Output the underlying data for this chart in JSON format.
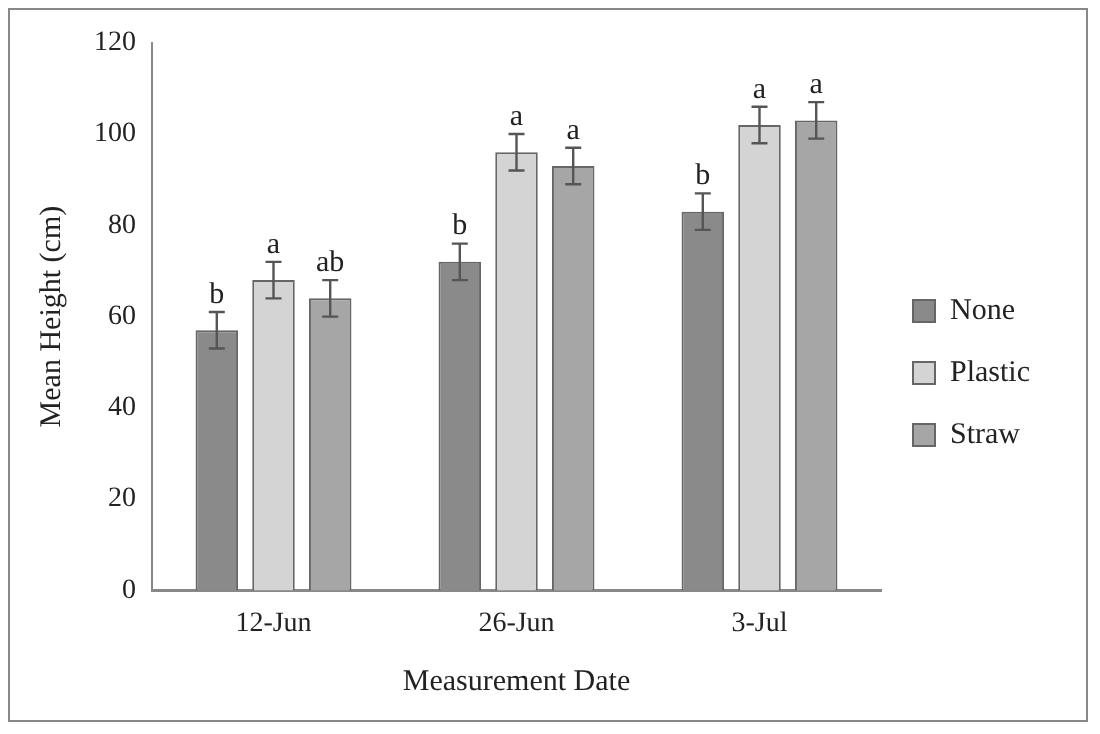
{
  "chart_data": {
    "type": "bar",
    "xlabel": "Measurement Date",
    "ylabel": "Mean Height (cm)",
    "categories": [
      "12-Jun",
      "26-Jun",
      "3-Jul"
    ],
    "series": [
      {
        "name": "None",
        "color": "#8a8a8a",
        "values": [
          57,
          72,
          83
        ],
        "errors": [
          4,
          4,
          4
        ],
        "value_labels": [
          "b",
          "b",
          "b"
        ]
      },
      {
        "name": "Plastic",
        "color": "#d4d4d4",
        "values": [
          68,
          96,
          102
        ],
        "errors": [
          4,
          4,
          4
        ],
        "value_labels": [
          "a",
          "a",
          "a"
        ]
      },
      {
        "name": "Straw",
        "color": "#a6a6a6",
        "values": [
          64,
          93,
          103
        ],
        "errors": [
          4,
          4,
          4
        ],
        "value_labels": [
          "ab",
          "a",
          "a"
        ]
      }
    ],
    "ylim": [
      0,
      120
    ],
    "yticks": [
      0,
      20,
      40,
      60,
      80,
      100,
      120
    ],
    "grid": false,
    "legend": "right"
  }
}
